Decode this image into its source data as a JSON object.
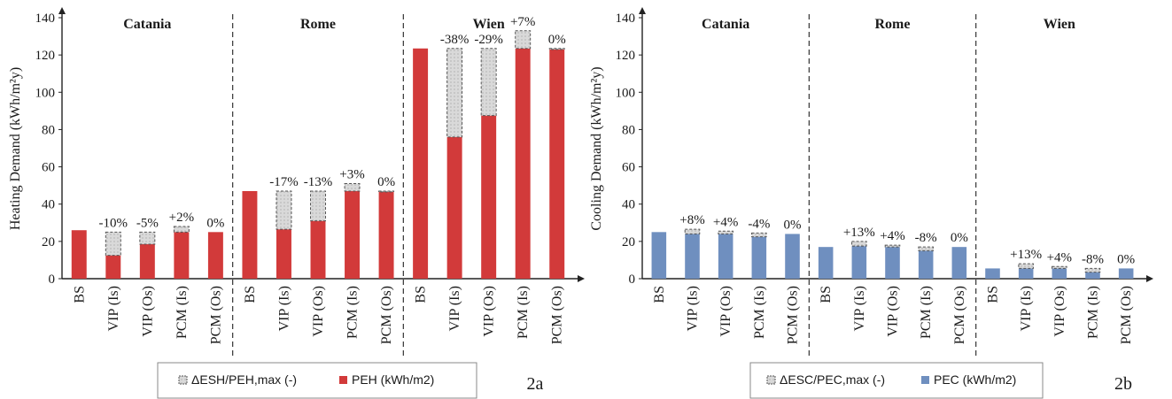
{
  "chart_data": [
    {
      "type": "bar",
      "panel_label": "2a",
      "ylabel": "Heating Demand (kWh/m²y)",
      "ylim": [
        0,
        140
      ],
      "yticks": [
        0,
        20,
        40,
        60,
        80,
        100,
        120,
        140
      ],
      "categories": [
        "BS",
        "VIP (Is)",
        "VIP (Os)",
        "PCM (Is)",
        "PCM (Os)"
      ],
      "groups": [
        {
          "city": "Catania",
          "base": [
            26,
            12.5,
            18.5,
            25,
            25
          ],
          "top": [
            26,
            25,
            25,
            28,
            25
          ],
          "labels": [
            "",
            "-10%",
            "-5%",
            "+2%",
            "0%"
          ]
        },
        {
          "city": "Rome",
          "base": [
            47,
            26.5,
            31,
            47,
            46.5
          ],
          "top": [
            47,
            47,
            47,
            51,
            47
          ],
          "labels": [
            "",
            "-17%",
            "-13%",
            "+3%",
            "0%"
          ]
        },
        {
          "city": "Wien",
          "base": [
            123.5,
            76,
            87.5,
            123.5,
            123
          ],
          "top": [
            123.5,
            123.5,
            123.5,
            133,
            123.5
          ],
          "labels": [
            "",
            "-38%",
            "-29%",
            "+7%",
            "0%"
          ]
        }
      ],
      "bar_color": "#d23a3a",
      "delta_color": "#d9d9d9",
      "legend": [
        "ΔESH/PEH,max (-)",
        "PEH (kWh/m2)"
      ]
    },
    {
      "type": "bar",
      "panel_label": "2b",
      "ylabel": "Cooling Demand (kWh/m²y)",
      "ylim": [
        0,
        140
      ],
      "yticks": [
        0,
        20,
        40,
        60,
        80,
        100,
        120,
        140
      ],
      "categories": [
        "BS",
        "VIP (Is)",
        "VIP (Os)",
        "PCM (Is)",
        "PCM (Os)"
      ],
      "groups": [
        {
          "city": "Catania",
          "base": [
            25,
            24,
            24,
            22.5,
            24
          ],
          "top": [
            25,
            26.5,
            25.5,
            24.5,
            24
          ],
          "labels": [
            "",
            "+8%",
            "+4%",
            "-4%",
            "0%"
          ]
        },
        {
          "city": "Rome",
          "base": [
            17,
            17.5,
            17,
            15,
            17
          ],
          "top": [
            17,
            20,
            18,
            17,
            17
          ],
          "labels": [
            "",
            "+13%",
            "+4%",
            "-8%",
            "0%"
          ]
        },
        {
          "city": "Wien",
          "base": [
            5.5,
            5.5,
            5.5,
            3.5,
            5.5
          ],
          "top": [
            5.5,
            8,
            6.5,
            5.5,
            5.5
          ],
          "labels": [
            "",
            "+13%",
            "+4%",
            "-8%",
            "0%"
          ]
        }
      ],
      "bar_color": "#6f8fbf",
      "delta_color": "#d9d9d9",
      "legend": [
        "ΔESC/PEC,max (-)",
        "PEC (kWh/m2)"
      ]
    }
  ]
}
